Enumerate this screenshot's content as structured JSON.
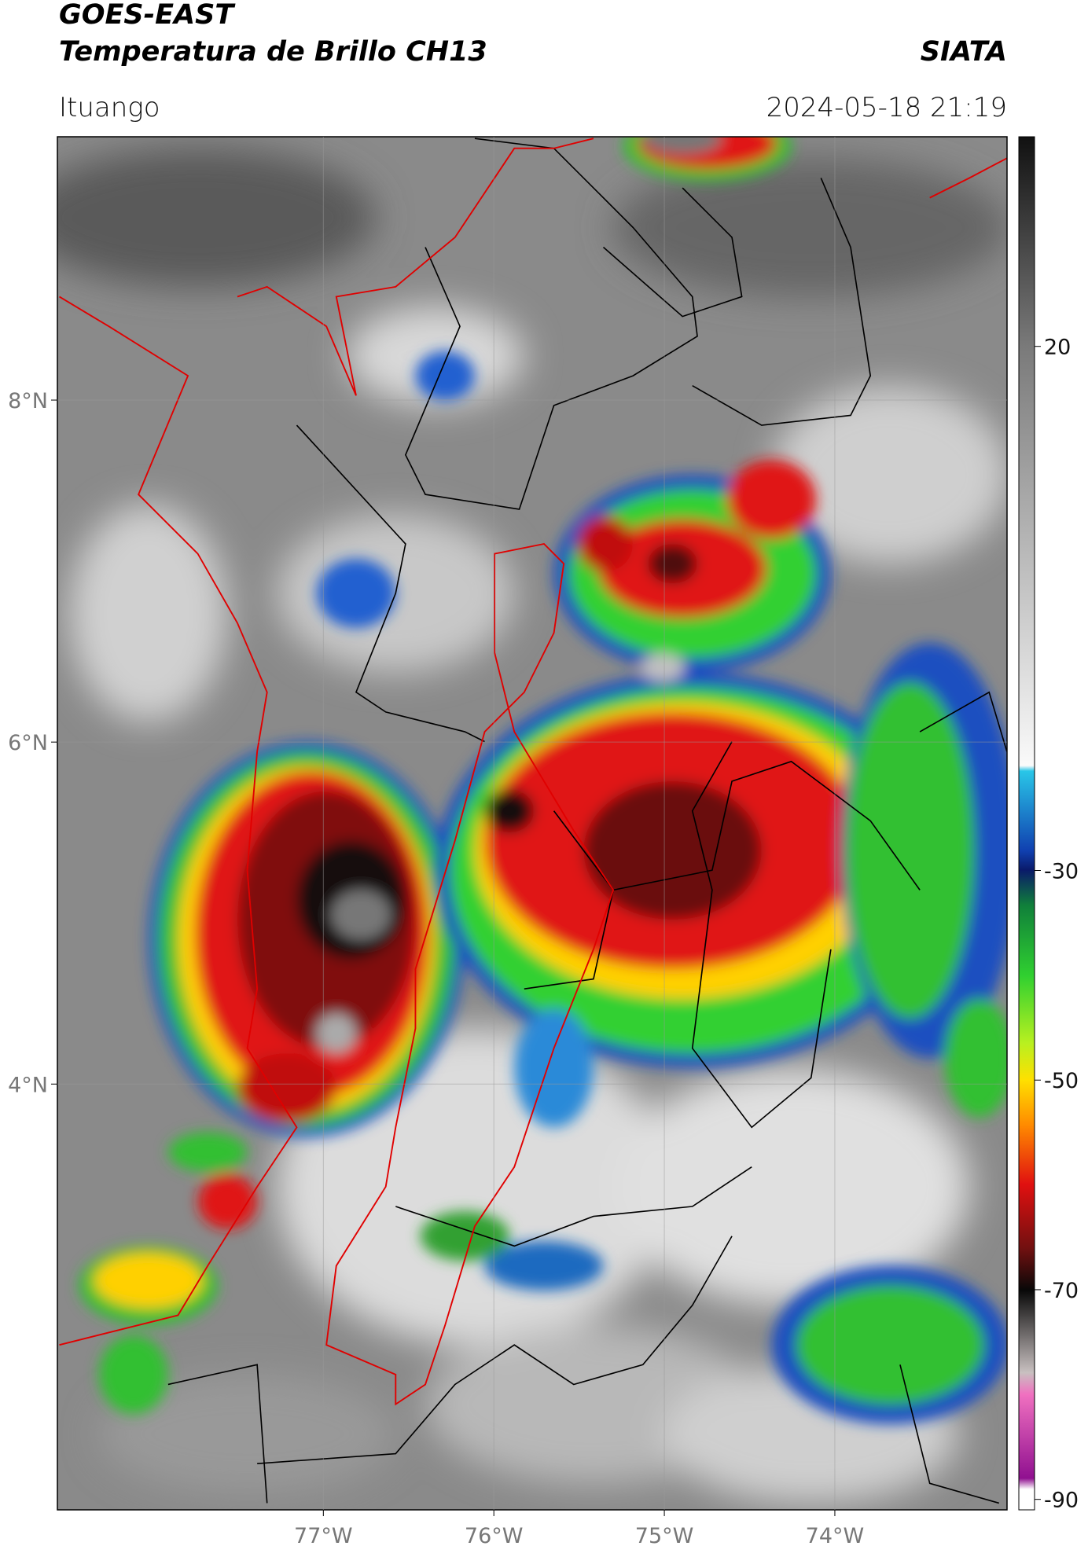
{
  "chart_data": {
    "type": "map",
    "title": "GOES-EAST",
    "subtitle": "Temperatura de Brillo CH13",
    "source": "SIATA",
    "location": "Ituango",
    "datetime": "2024-05-18 21:19",
    "xlim": [
      -78.56,
      -72.99
    ],
    "xticks": [
      {
        "value": -77,
        "label": "77°W"
      },
      {
        "value": -76,
        "label": "76°W"
      },
      {
        "value": -75,
        "label": "75°W"
      },
      {
        "value": -74,
        "label": "74°W"
      }
    ],
    "ylim": [
      1.51,
      9.54
    ],
    "yticks": [
      {
        "value": 4,
        "label": "4°N"
      },
      {
        "value": 6,
        "label": "6°N"
      },
      {
        "value": 8,
        "label": "8°N"
      }
    ],
    "grid": true,
    "colorbar": {
      "clim": [
        -91,
        40
      ],
      "ticks": [
        -90,
        -70,
        -50,
        -30,
        20
      ]
    }
  }
}
